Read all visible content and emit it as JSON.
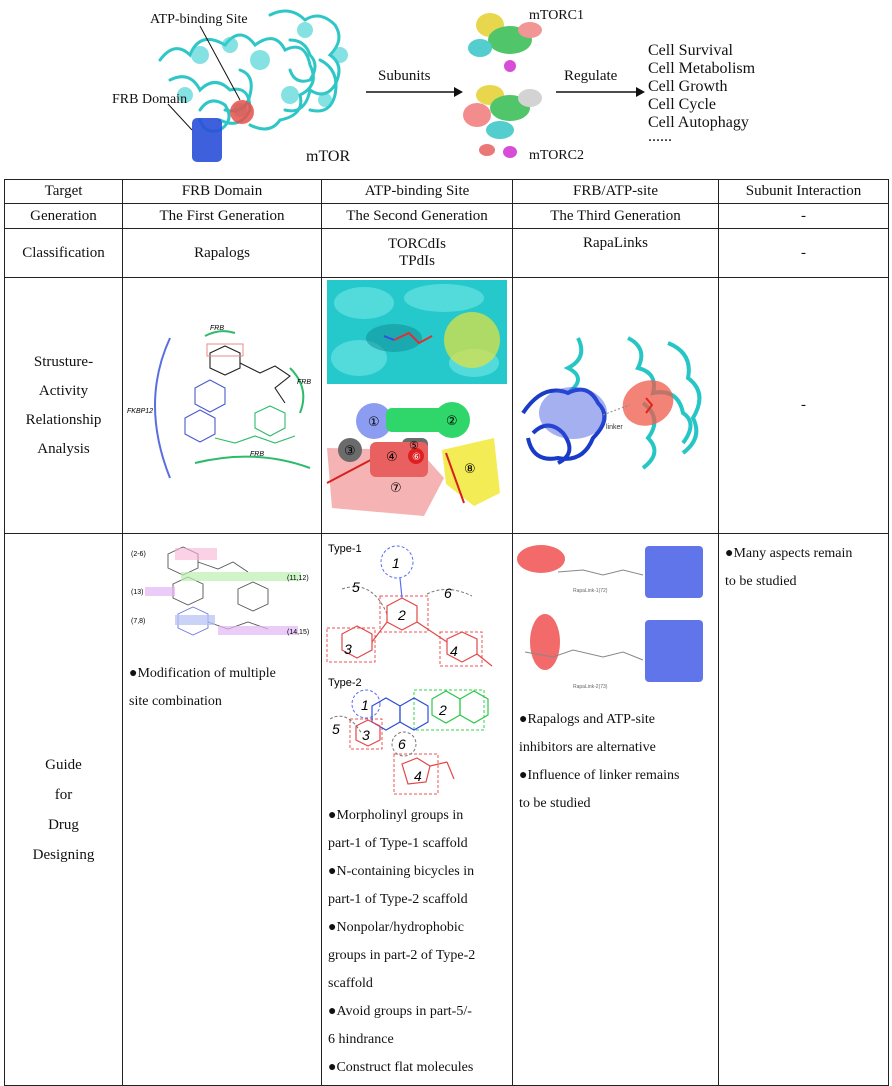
{
  "header": {
    "atp_label": "ATP-binding Site",
    "frb_label": "FRB Domain",
    "mtor_label": "mTOR",
    "subunits_label": "Subunits",
    "mtorc1_label": "mTORC1",
    "mtorc2_label": "mTORC2",
    "regulate_label": "Regulate",
    "outcomes": [
      "Cell Survival",
      "Cell Metabolism",
      "Cell Growth",
      "Cell Cycle",
      "Cell Autophagy",
      "......"
    ]
  },
  "table": {
    "row_headers": {
      "target": "Target",
      "generation": "Generation",
      "classification": "Classification",
      "sar": [
        "Strusture-",
        "Activity",
        "Relationship",
        "Analysis"
      ],
      "guide": [
        "Guide",
        "for",
        "Drug",
        "Designing"
      ]
    },
    "targets": [
      "FRB Domain",
      "ATP-binding Site",
      "FRB/ATP-site",
      "Subunit Interaction"
    ],
    "generations": [
      "The First Generation",
      "The Second Generation",
      "The Third Generation",
      "-"
    ],
    "classifications": {
      "frb": "Rapalogs",
      "atp": [
        "TORCdIs",
        "TPdIs"
      ],
      "frbatp": "RapaLinks",
      "subunit": "-"
    },
    "sar_subunit": "-",
    "sar_labels": {
      "frb_top": "FRB",
      "fkbp": "FKBP12",
      "frb_right": "FRB",
      "frb_bottom": "FRB",
      "linker": "linker",
      "pockets": [
        "①",
        "②",
        "③",
        "④",
        "⑤",
        "⑥",
        "⑦",
        "⑧"
      ]
    },
    "guide": {
      "frb_sites": [
        "(2-6)",
        "(13)",
        "(7,8)",
        "(11,12)",
        "(14,15)"
      ],
      "frb_text": [
        "●Modification of multiple",
        "site combination"
      ],
      "type1_label": "Type-1",
      "type2_label": "Type-2",
      "type1_nums": [
        "1",
        "2",
        "3",
        "4",
        "5",
        "6"
      ],
      "type2_nums": [
        "1",
        "2",
        "3",
        "4",
        "5",
        "6"
      ],
      "atp_text": [
        "●Morpholinyl groups in",
        "part-1 of Type-1 scaffold",
        "●N-containing bicycles in",
        "part-1 of Type-2 scaffold",
        "●Nonpolar/hydrophobic",
        "groups in part-2 of Type-2",
        "scaffold",
        "●Avoid groups in part-5/-",
        "6 hindrance",
        "●Construct flat molecules"
      ],
      "rapalink_labels": [
        "RapaLink-1(72)",
        "RapaLink-2(73)"
      ],
      "frbatp_text": [
        "●Rapalogs and ATP-site",
        "inhibitors are alternative",
        "●Influence of linker remains",
        "to be studied"
      ],
      "subunit_text": [
        "●Many aspects remain",
        "to be studied"
      ]
    }
  }
}
